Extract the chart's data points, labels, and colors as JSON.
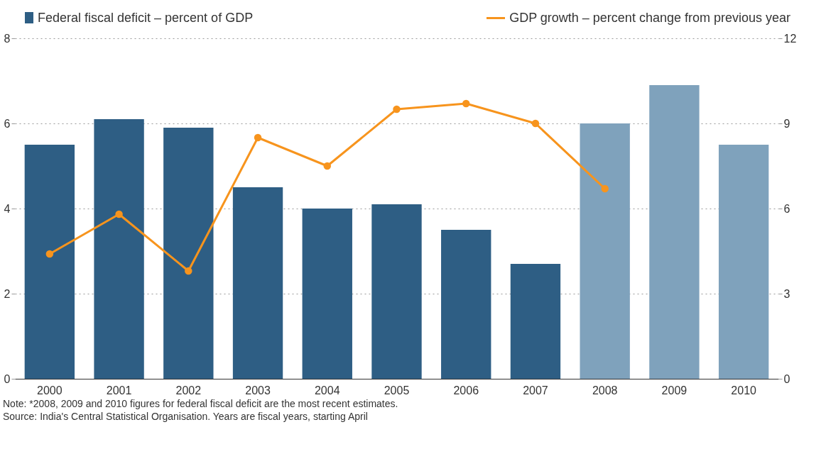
{
  "chart_data": {
    "type": "bar",
    "categories": [
      "2000",
      "2001",
      "2002",
      "2003",
      "2004",
      "2005",
      "2006",
      "2007",
      "2008",
      "2009",
      "2010"
    ],
    "series": [
      {
        "name": "Federal fiscal deficit – percent of GDP",
        "colors": [
          "#2e5e84",
          "#2e5e84",
          "#2e5e84",
          "#2e5e84",
          "#2e5e84",
          "#2e5e84",
          "#2e5e84",
          "#2e5e84",
          "#7fa2bc",
          "#7fa2bc",
          "#7fa2bc"
        ],
        "values": [
          5.5,
          6.1,
          5.9,
          4.5,
          4.0,
          4.1,
          3.5,
          2.7,
          6.0,
          6.9,
          5.5
        ]
      },
      {
        "name": "GDP growth – percent change from previous year",
        "type": "line",
        "axis": "y2",
        "color": "#f7941d",
        "values": [
          4.4,
          5.8,
          3.8,
          8.5,
          7.5,
          9.5,
          9.7,
          9.0,
          6.7,
          null,
          null
        ]
      }
    ],
    "ylim": [
      0,
      8
    ],
    "yticks": [
      0,
      2,
      4,
      6,
      8
    ],
    "y2lim": [
      0,
      12
    ],
    "y2ticks": [
      0,
      3,
      6,
      9,
      12
    ],
    "grid": "y",
    "legend": "top",
    "marker": "circle",
    "line_style": "solid",
    "annotations": [
      "Note: *2008, 2009 and 2010 figures for federal fiscal deficit are the most recent estimates.",
      "Source: India's Central Statistical Organisation. Years are fiscal years, starting April"
    ]
  }
}
